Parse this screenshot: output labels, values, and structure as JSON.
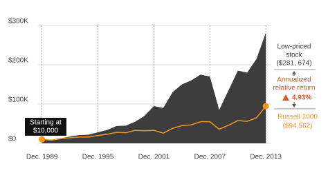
{
  "chart_data": {
    "type": "area",
    "x": [
      1989.92,
      1990.92,
      1991.92,
      1992.92,
      1993.92,
      1994.92,
      1995.92,
      1996.92,
      1997.92,
      1998.92,
      1999.92,
      2000.92,
      2001.92,
      2002.92,
      2003.92,
      2004.92,
      2005.92,
      2006.92,
      2007.92,
      2008.92,
      2009.92,
      2010.92,
      2011.92,
      2012.92,
      2013.92
    ],
    "series": [
      {
        "name": "Low-priced stock",
        "color": "#3d3d3d",
        "values": [
          10000,
          9000,
          13000,
          17000,
          21000,
          22000,
          28000,
          34000,
          44000,
          45000,
          55000,
          70000,
          95000,
          90000,
          130000,
          150000,
          160000,
          175000,
          170000,
          85000,
          135000,
          185000,
          180000,
          215000,
          281674
        ]
      },
      {
        "name": "Russell 2000",
        "color": "#f7941d",
        "values": [
          10000,
          8000,
          12000,
          14000,
          16000,
          16000,
          20000,
          23000,
          28000,
          27000,
          33000,
          32000,
          33000,
          26000,
          38000,
          45000,
          47000,
          55000,
          55000,
          36000,
          46000,
          58000,
          56000,
          65000,
          94562
        ]
      }
    ],
    "xlim": [
      1989.5,
      2014.5
    ],
    "xticks": [
      {
        "value": 1989.92,
        "label": "Dec. 1989"
      },
      {
        "value": 1995.92,
        "label": "Dec. 1995"
      },
      {
        "value": 2001.92,
        "label": "Dec. 2001"
      },
      {
        "value": 2007.92,
        "label": "Dec. 2007"
      },
      {
        "value": 2013.92,
        "label": "Dec. 2013"
      }
    ],
    "ylim": [
      0,
      300000
    ],
    "yticks": [
      {
        "value": 0,
        "label": "$0"
      },
      {
        "value": 100000,
        "label": "$100K"
      },
      {
        "value": 200000,
        "label": "$200K"
      },
      {
        "value": 300000,
        "label": "$300K"
      }
    ],
    "grid": true,
    "annotations": {
      "start": [
        "Starting at",
        "$10,000"
      ],
      "stock": [
        "Low-priced",
        "stock",
        "($281, 674)"
      ],
      "relative": [
        "Annualized",
        "relative return",
        "4.93%"
      ],
      "russell": [
        "Russell 2000",
        "($94,562)"
      ]
    }
  }
}
